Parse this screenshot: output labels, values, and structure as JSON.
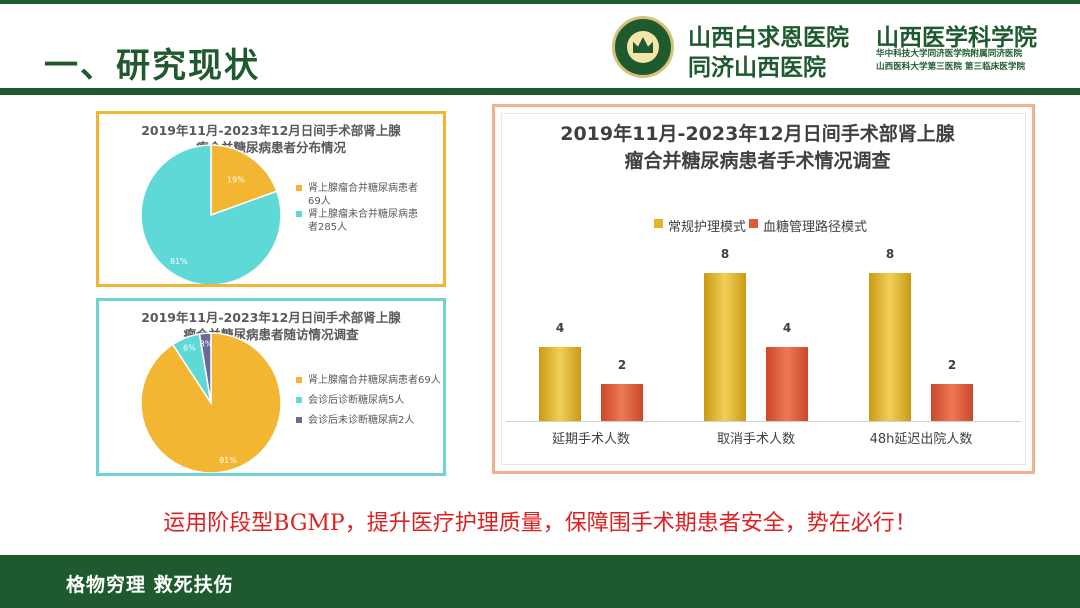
{
  "header": {
    "title": "一、研究现状",
    "logo": {
      "name_1": "山西白求恩医院",
      "name_2": "山西医学科学院",
      "name_3": "同济山西医院",
      "name_4_line1": "华中科技大学同济医学院附属同济医院",
      "name_4_line2": "山西医科大学第三医院 第三临床医学院"
    }
  },
  "colors": {
    "brand_green": "#1f5a2e",
    "pie_orange": "#f2b632",
    "pie_cyan": "#5fd8d8",
    "pie_purple": "#6a6a9a",
    "bar_gold": "#e3b52a",
    "bar_red": "#e05a35",
    "tagline_red": "#e02020"
  },
  "chart_data": [
    {
      "type": "pie",
      "title_line1": "2019年11月-2023年12月日间手术部肾上腺",
      "title_line2": "瘤合并糖尿病患者分布情况",
      "slices": [
        {
          "label": "肾上腺瘤合并糖尿病患者69人",
          "value": 69,
          "percent_label": "19%"
        },
        {
          "label": "肾上腺瘤未合并糖尿病患者285人",
          "value": 285,
          "percent_label": "81%"
        }
      ],
      "legend_placement": "right"
    },
    {
      "type": "pie",
      "title_line1": "2019年11月-2023年12月日间手术部肾上腺",
      "title_line2": "瘤合并糖尿病患者随访情况调查",
      "slices": [
        {
          "label": "肾上腺瘤合并糖尿病患者69人",
          "value": 69,
          "percent_label": "91%"
        },
        {
          "label": "会诊后诊断糖尿病5人",
          "value": 5,
          "percent_label": "6%"
        },
        {
          "label": "会诊后未诊断糖尿病2人",
          "value": 2,
          "percent_label": "3%"
        }
      ],
      "legend_placement": "right"
    },
    {
      "type": "bar",
      "title_line1": "2019年11月-2023年12月日间手术部肾上腺",
      "title_line2": "瘤合并糖尿病患者手术情况调查",
      "categories": [
        "延期手术人数",
        "取消手术人数",
        "48h延迟出院人数"
      ],
      "series": [
        {
          "name": "常规护理模式",
          "values": [
            4,
            8,
            8
          ]
        },
        {
          "name": "血糖管理路径模式",
          "values": [
            2,
            4,
            2
          ]
        }
      ],
      "ylim": [
        0,
        9
      ],
      "grid": false,
      "legend_placement": "top"
    }
  ],
  "tagline": "运用阶段型BGMP，提升医疗护理质量，保障围手术期患者安全，势在必行！",
  "footer": {
    "motto": "格物穷理 救死扶伤"
  }
}
